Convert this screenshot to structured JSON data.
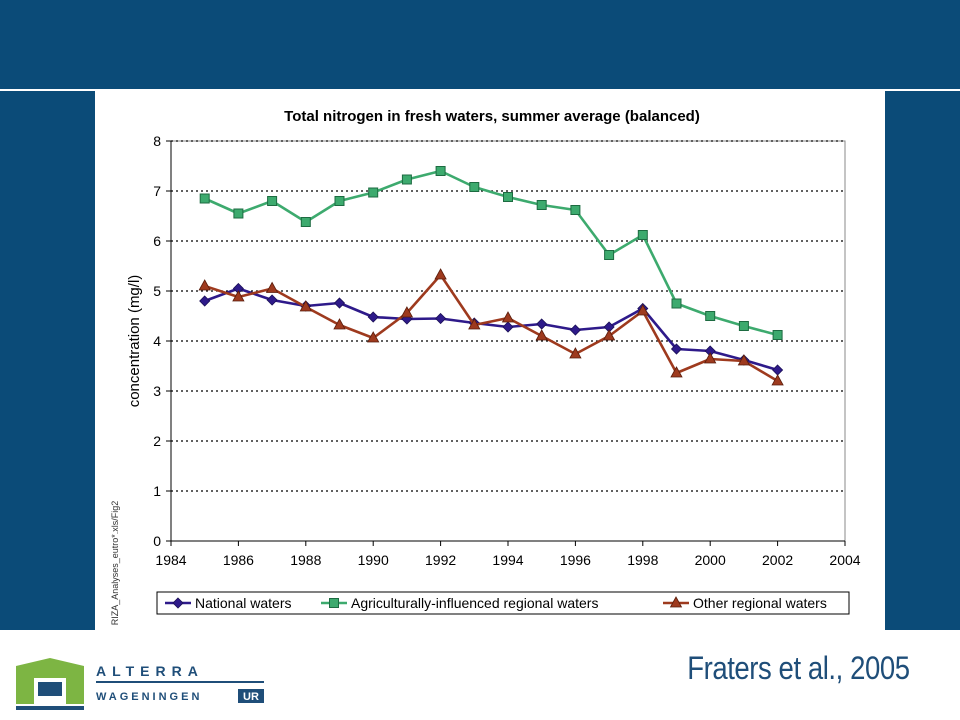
{
  "citation": "Fraters et al., 2005",
  "logo": {
    "line1": "ALTERRA",
    "line2_part1": "WAGENINGEN",
    "line2_part2": "UR",
    "colors": {
      "green": "#7db543",
      "blue": "#1f4e79"
    }
  },
  "colors": {
    "band": "#0b4b78"
  },
  "chart_data": {
    "type": "line",
    "title": "Total nitrogen in fresh waters, summer average (balanced)",
    "xlabel": "",
    "ylabel": "concentration (mg/l)",
    "side_note": "RIZA_Analyses_eutro*.xls/Fig2",
    "xlim": [
      1984,
      2004
    ],
    "ylim": [
      0,
      8
    ],
    "xticks": [
      1984,
      1986,
      1988,
      1990,
      1992,
      1994,
      1996,
      1998,
      2000,
      2002,
      2004
    ],
    "yticks": [
      0,
      1,
      2,
      3,
      4,
      5,
      6,
      7,
      8
    ],
    "grid": "horizontal dotted",
    "legend": "bottom",
    "x": [
      1985,
      1986,
      1987,
      1988,
      1989,
      1990,
      1991,
      1992,
      1993,
      1994,
      1995,
      1996,
      1997,
      1998,
      1999,
      2000,
      2001,
      2002
    ],
    "series": [
      {
        "name": "National waters",
        "color": "#2e1a8a",
        "marker": "diamond",
        "values": [
          4.8,
          5.05,
          4.82,
          4.7,
          4.76,
          4.48,
          4.44,
          4.45,
          4.36,
          4.28,
          4.34,
          4.22,
          4.28,
          4.65,
          3.84,
          3.8,
          3.62,
          3.42
        ]
      },
      {
        "name": "Agriculturally-influenced regional waters",
        "color": "#3daa6e",
        "marker": "square",
        "values": [
          6.85,
          6.55,
          6.8,
          6.38,
          6.8,
          6.97,
          7.23,
          7.4,
          7.08,
          6.88,
          6.72,
          6.62,
          5.72,
          6.12,
          4.75,
          4.5,
          4.3,
          4.12
        ]
      },
      {
        "name": "Other regional waters",
        "color": "#9e3a1e",
        "marker": "triangle",
        "values": [
          5.1,
          4.88,
          5.05,
          4.68,
          4.32,
          4.06,
          4.56,
          5.32,
          4.32,
          4.46,
          4.1,
          3.74,
          4.1,
          4.6,
          3.36,
          3.64,
          3.6,
          3.2
        ]
      }
    ]
  }
}
